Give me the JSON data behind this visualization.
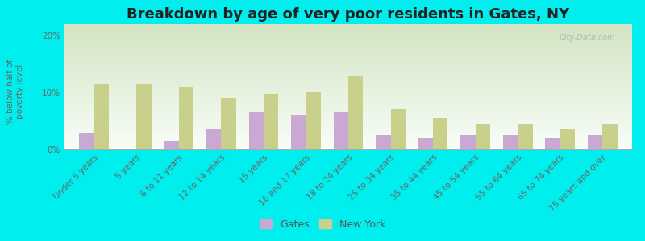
{
  "title": "Breakdown by age of very poor residents in Gates, NY",
  "ylabel": "% below half of\npoverty level",
  "categories": [
    "Under 5 years",
    "5 years",
    "6 to 11 years",
    "12 to 14 years",
    "15 years",
    "16 and 17 years",
    "18 to 24 years",
    "25 to 34 years",
    "35 to 44 years",
    "45 to 54 years",
    "55 to 64 years",
    "65 to 74 years",
    "75 years and over"
  ],
  "gates_values": [
    3.0,
    0.0,
    1.5,
    3.5,
    6.5,
    6.0,
    6.5,
    2.5,
    2.0,
    2.5,
    2.5,
    2.0,
    2.5
  ],
  "ny_values": [
    11.5,
    11.5,
    11.0,
    9.0,
    9.8,
    10.0,
    13.0,
    7.0,
    5.5,
    4.5,
    4.5,
    3.5,
    4.5
  ],
  "gates_color": "#c9a8d4",
  "ny_color": "#c8d08c",
  "background_outer": "#00eeee",
  "background_plot_top": "#f0f8f0",
  "background_plot_bottom": "#d8e8c8",
  "ylim": [
    0,
    22
  ],
  "yticks": [
    0,
    10,
    20
  ],
  "ytick_labels": [
    "0%",
    "10%",
    "20%"
  ],
  "title_fontsize": 13,
  "label_fontsize": 7.5,
  "legend_labels": [
    "Gates",
    "New York"
  ],
  "bar_width": 0.35,
  "watermark": "City-Data.com"
}
